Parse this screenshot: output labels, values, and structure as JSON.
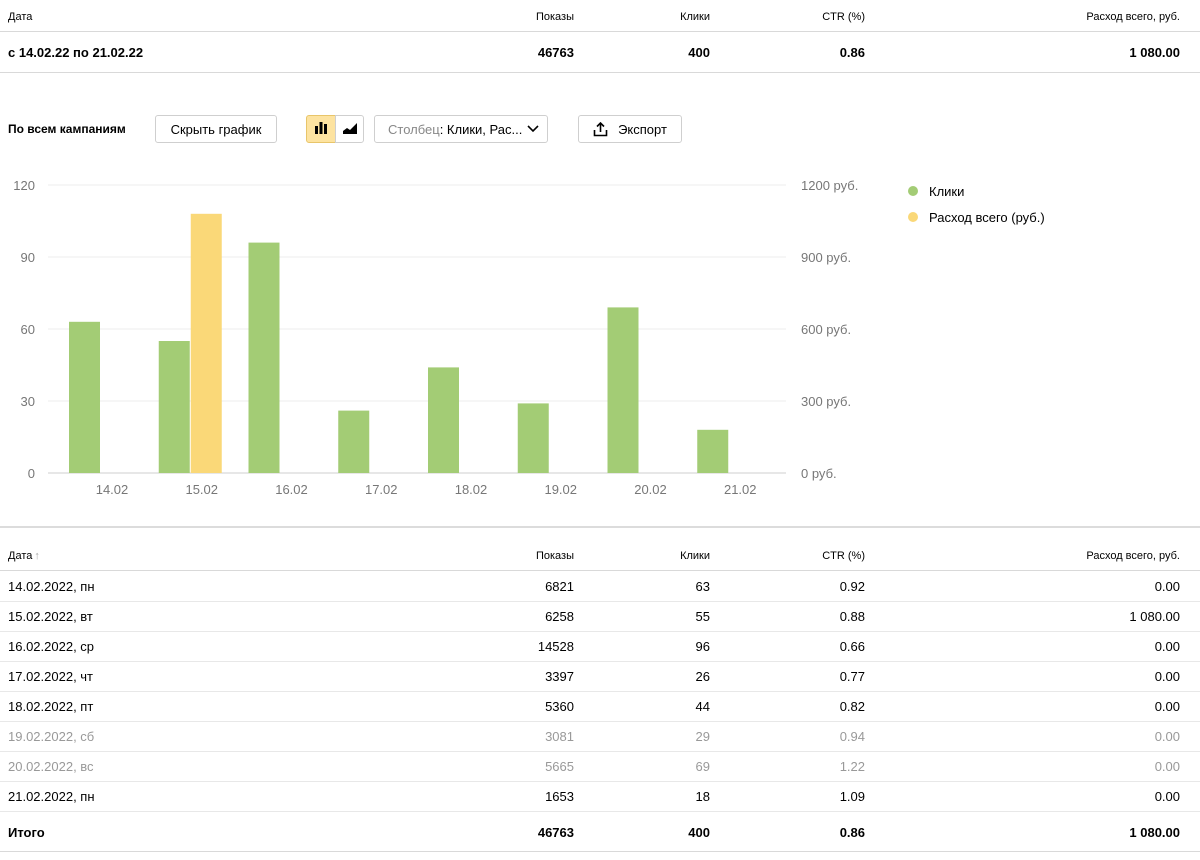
{
  "summary": {
    "headers": {
      "date": "Дата",
      "shows": "Показы",
      "clicks": "Клики",
      "ctr": "CTR (%)",
      "spend": "Расход всего, руб."
    },
    "row": {
      "date": "с 14.02.22 по 21.02.22",
      "shows": "46763",
      "clicks": "400",
      "ctr": "0.86",
      "spend": "1 080.00"
    }
  },
  "toolbar": {
    "title": "По всем кампаниям",
    "hide_chart": "Скрыть график",
    "column_label": "Столбец",
    "column_value": ": Клики, Рас...",
    "export": "Экспорт",
    "bar_icon": "bar-chart-icon",
    "area_icon": "area-chart-icon",
    "export_icon": "upload-icon",
    "chevron_icon": "chevron-down-icon"
  },
  "chart_data": {
    "type": "bar",
    "categories": [
      "14.02",
      "15.02",
      "16.02",
      "17.02",
      "18.02",
      "19.02",
      "20.02",
      "21.02"
    ],
    "series": [
      {
        "name": "Клики",
        "axis": "left",
        "color": "#a3cc75",
        "values": [
          63,
          55,
          96,
          26,
          44,
          29,
          69,
          18
        ]
      },
      {
        "name": "Расход всего (руб.)",
        "axis": "right",
        "color": "#fad878",
        "values": [
          0,
          1080,
          0,
          0,
          0,
          0,
          0,
          0
        ]
      }
    ],
    "y_left": {
      "ticks": [
        "0",
        "30",
        "60",
        "90",
        "120"
      ],
      "ylim": [
        0,
        120
      ]
    },
    "y_right": {
      "ticks": [
        "0 руб.",
        "300 руб.",
        "600 руб.",
        "900 руб.",
        "1200 руб."
      ],
      "ylim": [
        0,
        1200
      ]
    },
    "grid": true,
    "legend_position": "right"
  },
  "table": {
    "headers": {
      "date": "Дата",
      "sort_arrow": "↑",
      "shows": "Показы",
      "clicks": "Клики",
      "ctr": "CTR (%)",
      "spend": "Расход всего, руб."
    },
    "rows": [
      {
        "date": "14.02.2022, пн",
        "shows": "6821",
        "clicks": "63",
        "ctr": "0.92",
        "spend": "0.00",
        "muted": false
      },
      {
        "date": "15.02.2022, вт",
        "shows": "6258",
        "clicks": "55",
        "ctr": "0.88",
        "spend": "1 080.00",
        "muted": false
      },
      {
        "date": "16.02.2022, ср",
        "shows": "14528",
        "clicks": "96",
        "ctr": "0.66",
        "spend": "0.00",
        "muted": false
      },
      {
        "date": "17.02.2022, чт",
        "shows": "3397",
        "clicks": "26",
        "ctr": "0.77",
        "spend": "0.00",
        "muted": false
      },
      {
        "date": "18.02.2022, пт",
        "shows": "5360",
        "clicks": "44",
        "ctr": "0.82",
        "spend": "0.00",
        "muted": false
      },
      {
        "date": "19.02.2022, сб",
        "shows": "3081",
        "clicks": "29",
        "ctr": "0.94",
        "spend": "0.00",
        "muted": true
      },
      {
        "date": "20.02.2022, вс",
        "shows": "5665",
        "clicks": "69",
        "ctr": "1.22",
        "spend": "0.00",
        "muted": true
      },
      {
        "date": "21.02.2022, пн",
        "shows": "1653",
        "clicks": "18",
        "ctr": "1.09",
        "spend": "0.00",
        "muted": false
      }
    ],
    "total": {
      "date": "Итого",
      "shows": "46763",
      "clicks": "400",
      "ctr": "0.86",
      "spend": "1 080.00"
    }
  }
}
